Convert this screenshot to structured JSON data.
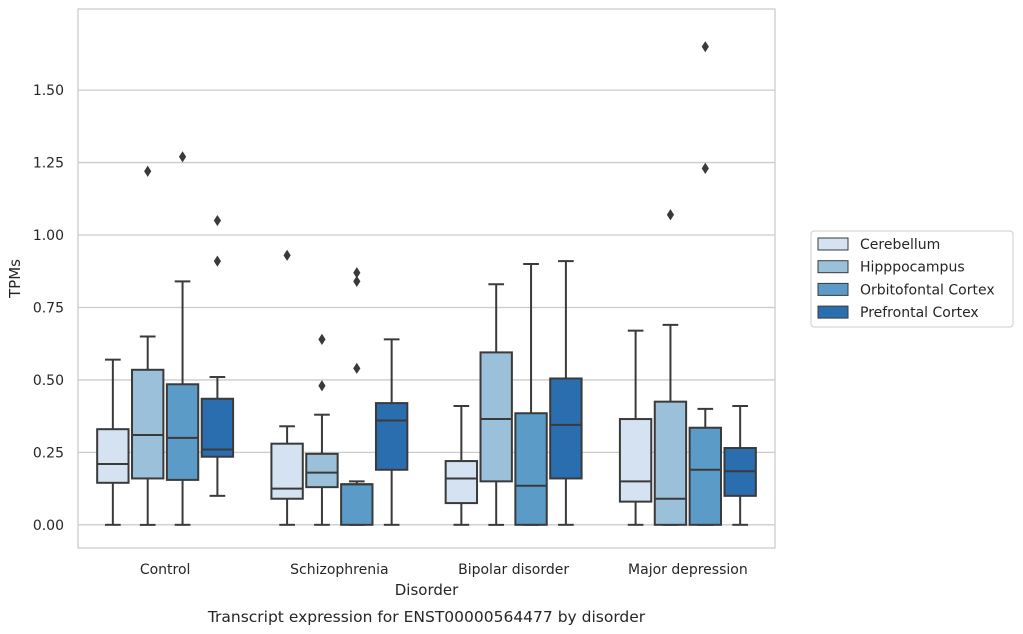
{
  "chart_data": {
    "type": "box",
    "caption": "Transcript expression for ENST00000564477 by disorder",
    "xlabel": "Disorder",
    "ylabel": "TPMs",
    "ylim": [
      -0.08,
      1.78
    ],
    "yticks": [
      0.0,
      0.25,
      0.5,
      0.75,
      1.0,
      1.25,
      1.5
    ],
    "ytick_labels": [
      "0.00",
      "0.25",
      "0.50",
      "0.75",
      "1.00",
      "1.25",
      "1.50"
    ],
    "grid": "horizontal",
    "legend_position": "right",
    "categories": [
      "Control",
      "Schizophrenia",
      "Bipolar disorder",
      "Major depression"
    ],
    "series": [
      {
        "name": "Cerebellum",
        "color": "#d4e2f1",
        "boxes": [
          {
            "whisker_low": 0.0,
            "q1": 0.145,
            "median": 0.21,
            "q3": 0.33,
            "whisker_high": 0.57,
            "outliers": []
          },
          {
            "whisker_low": 0.0,
            "q1": 0.09,
            "median": 0.125,
            "q3": 0.28,
            "whisker_high": 0.34,
            "outliers": [
              0.93
            ]
          },
          {
            "whisker_low": 0.0,
            "q1": 0.075,
            "median": 0.16,
            "q3": 0.22,
            "whisker_high": 0.41,
            "outliers": []
          },
          {
            "whisker_low": 0.0,
            "q1": 0.08,
            "median": 0.15,
            "q3": 0.365,
            "whisker_high": 0.67,
            "outliers": []
          }
        ]
      },
      {
        "name": "Hipppocampus",
        "color": "#9bc1da",
        "boxes": [
          {
            "whisker_low": 0.0,
            "q1": 0.16,
            "median": 0.31,
            "q3": 0.535,
            "whisker_high": 0.65,
            "outliers": [
              1.22
            ]
          },
          {
            "whisker_low": 0.0,
            "q1": 0.13,
            "median": 0.18,
            "q3": 0.245,
            "whisker_high": 0.38,
            "outliers": [
              0.48,
              0.64
            ]
          },
          {
            "whisker_low": 0.0,
            "q1": 0.15,
            "median": 0.365,
            "q3": 0.595,
            "whisker_high": 0.83,
            "outliers": []
          },
          {
            "whisker_low": 0.0,
            "q1": 0.0,
            "median": 0.09,
            "q3": 0.425,
            "whisker_high": 0.69,
            "outliers": [
              1.07
            ]
          }
        ]
      },
      {
        "name": "Orbitofontal Cortex",
        "color": "#5a9bc8",
        "boxes": [
          {
            "whisker_low": 0.0,
            "q1": 0.155,
            "median": 0.3,
            "q3": 0.485,
            "whisker_high": 0.84,
            "outliers": [
              1.27
            ]
          },
          {
            "whisker_low": 0.0,
            "q1": 0.0,
            "median": 0.14,
            "q3": 0.14,
            "whisker_high": 0.15,
            "outliers": [
              0.54,
              0.84,
              0.87
            ]
          },
          {
            "whisker_low": 0.0,
            "q1": 0.0,
            "median": 0.135,
            "q3": 0.385,
            "whisker_high": 0.9,
            "outliers": []
          },
          {
            "whisker_low": 0.0,
            "q1": 0.0,
            "median": 0.19,
            "q3": 0.335,
            "whisker_high": 0.4,
            "outliers": [
              1.23,
              1.65
            ]
          }
        ]
      },
      {
        "name": "Prefrontal Cortex",
        "color": "#2a6eb0",
        "boxes": [
          {
            "whisker_low": 0.1,
            "q1": 0.235,
            "median": 0.26,
            "q3": 0.435,
            "whisker_high": 0.51,
            "outliers": [
              0.91,
              1.05
            ]
          },
          {
            "whisker_low": 0.0,
            "q1": 0.19,
            "median": 0.36,
            "q3": 0.42,
            "whisker_high": 0.64,
            "outliers": []
          },
          {
            "whisker_low": 0.0,
            "q1": 0.16,
            "median": 0.345,
            "q3": 0.505,
            "whisker_high": 0.91,
            "outliers": []
          },
          {
            "whisker_low": 0.0,
            "q1": 0.1,
            "median": 0.185,
            "q3": 0.265,
            "whisker_high": 0.41,
            "outliers": []
          }
        ]
      }
    ]
  }
}
